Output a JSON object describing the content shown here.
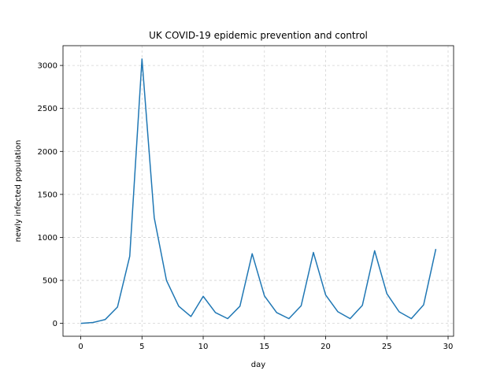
{
  "chart_data": {
    "type": "line",
    "title": "UK COVID-19 epidemic prevention and control",
    "xlabel": "day",
    "ylabel": "newly infected population",
    "xlim": [
      -1.45,
      30.45
    ],
    "ylim": [
      -150,
      3230
    ],
    "xticks": [
      0,
      5,
      10,
      15,
      20,
      25,
      30
    ],
    "yticks": [
      0,
      500,
      1000,
      1500,
      2000,
      2500,
      3000
    ],
    "grid": true,
    "series_color": "#1f77b4",
    "grid_color": "#d3d3d3",
    "series": [
      {
        "x": [
          0,
          1,
          2,
          3,
          4,
          5,
          6,
          7,
          8,
          9,
          10,
          11,
          12,
          13,
          14,
          15,
          16,
          17,
          18,
          19,
          20,
          21,
          22,
          23,
          24,
          25,
          26,
          27,
          28,
          29
        ],
        "values": [
          0,
          10,
          45,
          190,
          780,
          3075,
          1230,
          500,
          200,
          80,
          315,
          125,
          55,
          200,
          810,
          320,
          125,
          55,
          205,
          825,
          330,
          135,
          55,
          210,
          845,
          345,
          135,
          55,
          215,
          865
        ]
      }
    ]
  }
}
